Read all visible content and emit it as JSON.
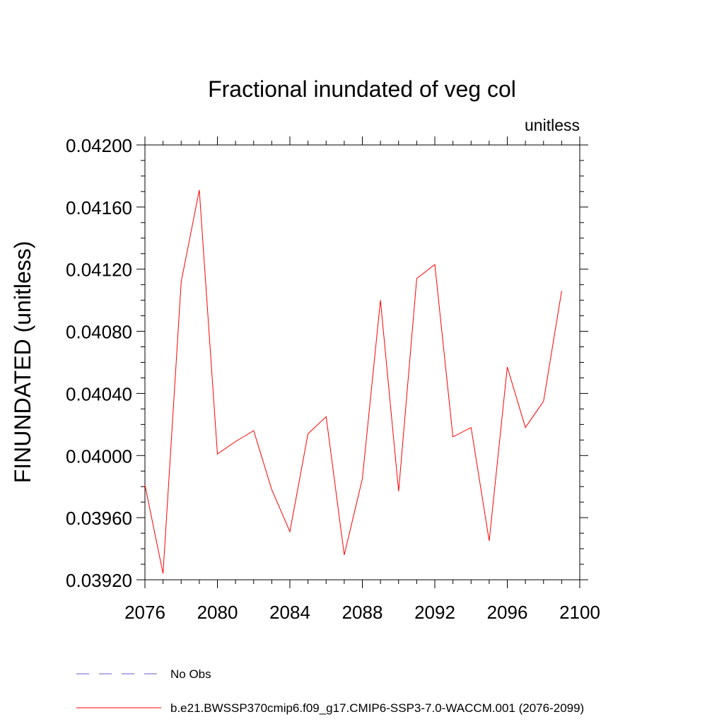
{
  "chart_data": {
    "type": "line",
    "title": "Fractional inundated of veg col",
    "units_label": "unitless",
    "ylabel": "FINUNDATED  (unitless)",
    "xlabel": "",
    "xlim": [
      2076,
      2100
    ],
    "ylim": [
      0.0392,
      0.042
    ],
    "x_ticks": [
      "2076",
      "2080",
      "2084",
      "2088",
      "2092",
      "2096",
      "2100"
    ],
    "y_ticks": [
      "0.03920",
      "0.03960",
      "0.04000",
      "0.04040",
      "0.04080",
      "0.04120",
      "0.04160",
      "0.04200"
    ],
    "grid": false,
    "legend_position": "bottom",
    "series": [
      {
        "name": "No Obs",
        "color": "#6a5acd",
        "style": "dashed",
        "x": [],
        "values": []
      },
      {
        "name": "b.e21.BWSSP370cmip6.f09_g17.CMIP6-SSP3-7.0-WACCM.001 (2076-2099)",
        "color": "#ff0000",
        "style": "solid",
        "x": [
          2076,
          2077,
          2078,
          2079,
          2080,
          2081,
          2082,
          2083,
          2084,
          2085,
          2086,
          2087,
          2088,
          2089,
          2090,
          2091,
          2092,
          2093,
          2094,
          2095,
          2096,
          2097,
          2098,
          2099
        ],
        "values": [
          0.03981,
          0.03924,
          0.04112,
          0.04171,
          0.04001,
          0.04009,
          0.04016,
          0.03978,
          0.03951,
          0.04014,
          0.04025,
          0.03936,
          0.03985,
          0.041,
          0.03977,
          0.04114,
          0.04123,
          0.04012,
          0.04018,
          0.03945,
          0.04057,
          0.04018,
          0.04035,
          0.04106
        ]
      }
    ]
  }
}
